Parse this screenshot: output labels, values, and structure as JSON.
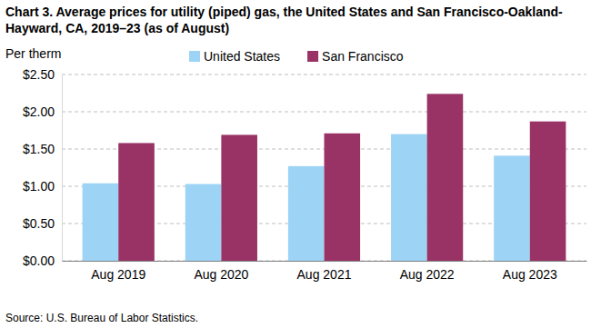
{
  "chart_data": {
    "type": "bar",
    "title": "Chart 3. Average prices for utility (piped) gas, the United States and San Francisco-Oakland-Hayward, CA, 2019–23 (as of August)",
    "y_label": "Per therm",
    "source": "Source: U.S. Bureau of Labor Statistics.",
    "categories": [
      "Aug 2019",
      "Aug 2020",
      "Aug 2021",
      "Aug 2022",
      "Aug 2023"
    ],
    "series": [
      {
        "name": "United States",
        "color": "#9dd3f5",
        "values": [
          1.04,
          1.03,
          1.27,
          1.7,
          1.41
        ]
      },
      {
        "name": "San Francisco",
        "color": "#993366",
        "values": [
          1.58,
          1.69,
          1.71,
          2.24,
          1.87
        ]
      }
    ],
    "ylim": [
      0,
      2.5
    ],
    "yticks": [
      {
        "value": 0,
        "label": "$0.00"
      },
      {
        "value": 0.5,
        "label": "$0.50"
      },
      {
        "value": 1,
        "label": "$1.00"
      },
      {
        "value": 1.5,
        "label": "$1.50"
      },
      {
        "value": 2,
        "label": "$2.00"
      },
      {
        "value": 2.5,
        "label": "$2.50"
      }
    ],
    "grid": true,
    "legend": "top"
  }
}
